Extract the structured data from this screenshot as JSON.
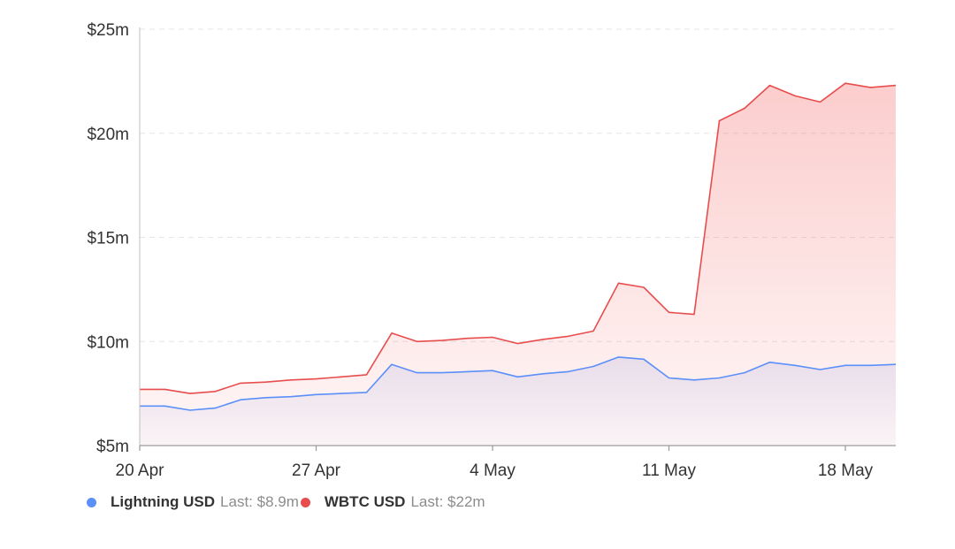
{
  "chart_data": {
    "type": "area",
    "x_axis": {
      "min": "2023-04-20",
      "max": "2023-05-20",
      "ticks": [
        {
          "date": "2023-04-20",
          "label": "20 Apr"
        },
        {
          "date": "2023-04-27",
          "label": "27 Apr"
        },
        {
          "date": "2023-05-04",
          "label": "4 May"
        },
        {
          "date": "2023-05-11",
          "label": "11 May"
        },
        {
          "date": "2023-05-18",
          "label": "18 May"
        }
      ]
    },
    "y_axis": {
      "min": 5,
      "max": 25,
      "unit": "million USD",
      "ticks": [
        {
          "value": 5,
          "label": "$5m"
        },
        {
          "value": 10,
          "label": "$10m"
        },
        {
          "value": 15,
          "label": "$15m"
        },
        {
          "value": 20,
          "label": "$20m"
        },
        {
          "value": 25,
          "label": "$25m"
        }
      ]
    },
    "grid": "horizontal dashed",
    "legend_position": "bottom-left",
    "series": [
      {
        "name": "Lightning USD",
        "last_label": "Last: $8.9m",
        "color": "#5b8ff9",
        "fill_top": "rgba(120,140,220,0.16)",
        "fill_bottom": "rgba(120,140,220,0.03)",
        "x": [
          "2023-04-20",
          "2023-04-21",
          "2023-04-22",
          "2023-04-23",
          "2023-04-24",
          "2023-04-25",
          "2023-04-26",
          "2023-04-27",
          "2023-04-28",
          "2023-04-29",
          "2023-04-30",
          "2023-05-01",
          "2023-05-02",
          "2023-05-03",
          "2023-05-04",
          "2023-05-05",
          "2023-05-06",
          "2023-05-07",
          "2023-05-08",
          "2023-05-09",
          "2023-05-10",
          "2023-05-11",
          "2023-05-12",
          "2023-05-13",
          "2023-05-14",
          "2023-05-15",
          "2023-05-16",
          "2023-05-17",
          "2023-05-18",
          "2023-05-19",
          "2023-05-20"
        ],
        "y": [
          6.9,
          6.9,
          6.7,
          6.8,
          7.2,
          7.3,
          7.35,
          7.45,
          7.5,
          7.55,
          8.9,
          8.5,
          8.5,
          8.55,
          8.6,
          8.3,
          8.45,
          8.55,
          8.8,
          9.25,
          9.15,
          8.25,
          8.15,
          8.25,
          8.5,
          9.0,
          8.85,
          8.65,
          8.85,
          8.85,
          8.9
        ]
      },
      {
        "name": "WBTC USD",
        "last_label": "Last: $22m",
        "color": "#e84d4d",
        "fill_top": "rgba(245,100,100,0.32)",
        "fill_bottom": "rgba(245,100,100,0.05)",
        "x": [
          "2023-04-20",
          "2023-04-21",
          "2023-04-22",
          "2023-04-23",
          "2023-04-24",
          "2023-04-25",
          "2023-04-26",
          "2023-04-27",
          "2023-04-28",
          "2023-04-29",
          "2023-04-30",
          "2023-05-01",
          "2023-05-02",
          "2023-05-03",
          "2023-05-04",
          "2023-05-05",
          "2023-05-06",
          "2023-05-07",
          "2023-05-08",
          "2023-05-09",
          "2023-05-10",
          "2023-05-11",
          "2023-05-12",
          "2023-05-13",
          "2023-05-14",
          "2023-05-15",
          "2023-05-16",
          "2023-05-17",
          "2023-05-18",
          "2023-05-19",
          "2023-05-20"
        ],
        "y": [
          7.7,
          7.7,
          7.5,
          7.6,
          8.0,
          8.05,
          8.15,
          8.2,
          8.3,
          8.4,
          10.4,
          10.0,
          10.05,
          10.15,
          10.2,
          9.9,
          10.1,
          10.25,
          10.5,
          12.8,
          12.6,
          11.4,
          11.3,
          20.6,
          21.2,
          22.3,
          21.8,
          21.5,
          22.4,
          22.2,
          22.3
        ]
      }
    ]
  }
}
